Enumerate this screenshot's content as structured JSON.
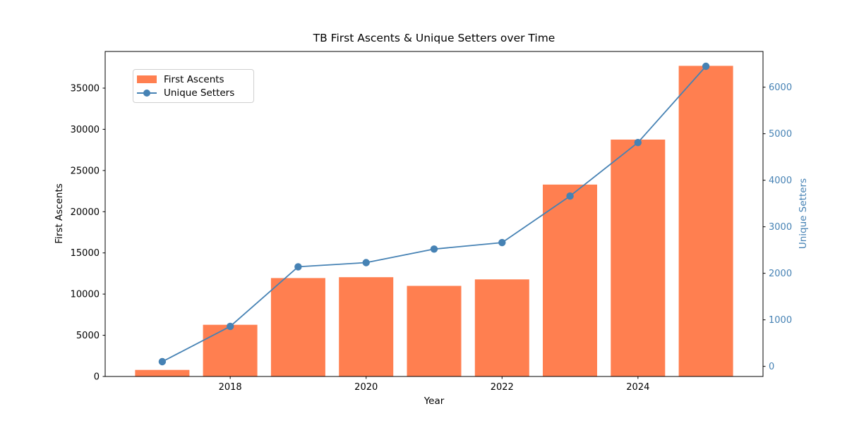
{
  "chart_data": {
    "type": "bar",
    "title": "TB First Ascents & Unique Setters over Time",
    "xlabel": "Year",
    "ylabel_left": "First Ascents",
    "ylabel_right": "Unique Setters",
    "categories": [
      2017,
      2018,
      2019,
      2020,
      2021,
      2022,
      2023,
      2024,
      2025
    ],
    "series": [
      {
        "name": "First Ascents",
        "type": "bar",
        "axis": "left",
        "color": "#ff7f50",
        "values": [
          800,
          6270,
          11950,
          12050,
          11000,
          11780,
          23290,
          28750,
          37700
        ]
      },
      {
        "name": "Unique Setters",
        "type": "line",
        "axis": "right",
        "color": "#4682b4",
        "values": [
          100,
          860,
          2140,
          2230,
          2520,
          2660,
          3660,
          4810,
          6450
        ]
      }
    ],
    "x_axis": {
      "ticks": [
        2018,
        2020,
        2022,
        2024
      ],
      "range": [
        2016.16,
        2025.84
      ]
    },
    "left_axis": {
      "ticks": [
        0,
        5000,
        10000,
        15000,
        20000,
        25000,
        30000,
        35000
      ],
      "range": [
        0,
        39450
      ],
      "label_color": "#000000"
    },
    "right_axis": {
      "ticks": [
        0,
        1000,
        2000,
        3000,
        4000,
        5000,
        6000
      ],
      "range": [
        -217.5,
        6767.5
      ],
      "label_color": "#4682b4"
    },
    "legend": {
      "position": "upper left"
    },
    "bar_width": 0.8,
    "grid": "off",
    "background": "#ffffff"
  }
}
